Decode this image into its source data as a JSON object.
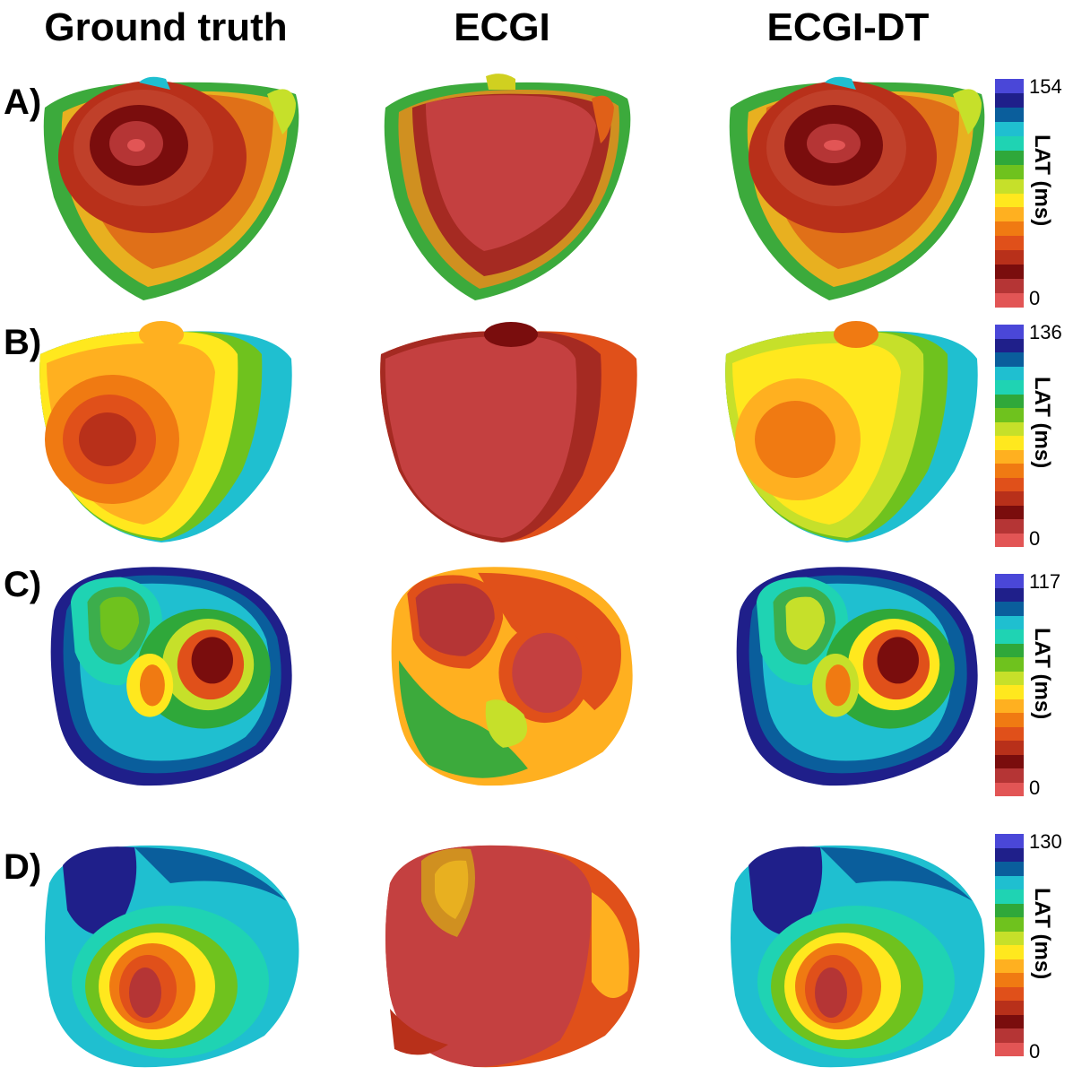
{
  "columns": [
    "Ground truth",
    "ECGI",
    "ECGI-DT"
  ],
  "rows": [
    {
      "label": "A)",
      "lat_max": "154",
      "lat_min": "0",
      "lat_title": "LAT (ms)"
    },
    {
      "label": "B)",
      "lat_max": "136",
      "lat_min": "0",
      "lat_title": "LAT (ms)"
    },
    {
      "label": "C)",
      "lat_max": "117",
      "lat_min": "0",
      "lat_title": "LAT (ms)"
    },
    {
      "label": "D)",
      "lat_max": "130",
      "lat_min": "0",
      "lat_title": "LAT (ms)"
    }
  ],
  "colormap": [
    "#4a47d8",
    "#1f1f8a",
    "#0a5e9c",
    "#1fbfd0",
    "#1fd3b3",
    "#2fa83a",
    "#6fc21e",
    "#c6e02a",
    "#ffe81e",
    "#ffb020",
    "#f07a12",
    "#e0501a",
    "#b8301a",
    "#7a0d0d",
    "#b53535",
    "#e25555"
  ]
}
